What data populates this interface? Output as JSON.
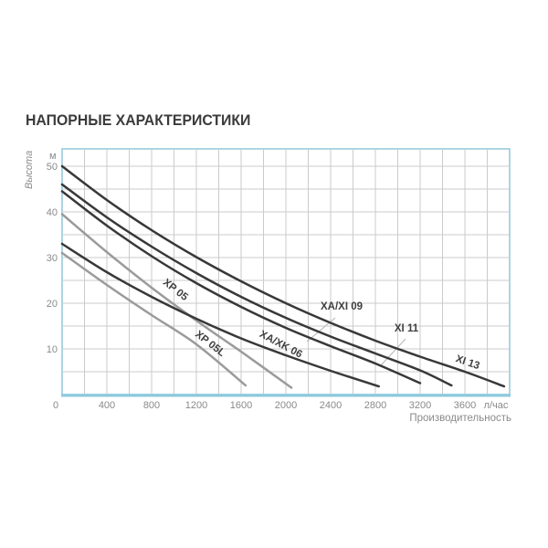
{
  "title": "НАПОРНЫЕ ХАРАКТЕРИСТИКИ",
  "chart_data": {
    "type": "line",
    "title": "НАПОРНЫЕ ХАРАКТЕРИСТИКИ",
    "xlabel": "Производительность",
    "x_unit": "л/час",
    "ylabel": "Высота",
    "y_unit": "м",
    "xlim": [
      0,
      4000
    ],
    "ylim": [
      0,
      53.8
    ],
    "x_ticks": [
      0,
      400,
      800,
      1200,
      1600,
      2000,
      2400,
      2800,
      3200,
      3600
    ],
    "y_ticks": [
      10,
      20,
      30,
      40,
      50
    ],
    "grid": {
      "x_step": 200,
      "y_step": 5,
      "on": true
    },
    "legend_position": "labels-on-curves",
    "colors": {
      "grid": "#cbcbcb",
      "frame": "#abd5e3",
      "frame_bottom": "#8ec9de",
      "axis_text": "#8a8a8a",
      "curve_dark": "#383838",
      "curve_gray": "#9b9b9b",
      "label_text": "#3f3f3f",
      "leader": "#b3b3b3",
      "title_text": "#3b3b3b"
    },
    "series": [
      {
        "name": "XP 05L",
        "color": "#9b9b9b",
        "points": [
          [
            0,
            31
          ],
          [
            400,
            24
          ],
          [
            800,
            17.4
          ],
          [
            1200,
            11
          ],
          [
            1640,
            2
          ]
        ],
        "label": {
          "x": 228,
          "y": 379,
          "rot": 38
        }
      },
      {
        "name": "XP 05",
        "color": "#9b9b9b",
        "points": [
          [
            0,
            39.5
          ],
          [
            400,
            31.2
          ],
          [
            800,
            23.4
          ],
          [
            1200,
            16.2
          ],
          [
            1600,
            9.4
          ],
          [
            2050,
            1.5
          ]
        ],
        "label": {
          "x": 190,
          "y": 320,
          "rot": 38
        }
      },
      {
        "name": "XA/XK 06",
        "color": "#383838",
        "points": [
          [
            0,
            33
          ],
          [
            400,
            26.8
          ],
          [
            800,
            21.4
          ],
          [
            1200,
            16.6
          ],
          [
            1600,
            12.3
          ],
          [
            2000,
            8.6
          ],
          [
            2400,
            5.2
          ],
          [
            2830,
            1.8
          ]
        ],
        "label": {
          "x": 306,
          "y": 380,
          "rot": 28
        }
      },
      {
        "name": "XA/XI 09",
        "color": "#383838",
        "points": [
          [
            0,
            44.5
          ],
          [
            400,
            37
          ],
          [
            800,
            30.3
          ],
          [
            1200,
            24.4
          ],
          [
            1600,
            19.2
          ],
          [
            2000,
            14.6
          ],
          [
            2400,
            10.6
          ],
          [
            2800,
            6.8
          ],
          [
            3200,
            2.5
          ]
        ],
        "label": {
          "x": 374,
          "y": 339,
          "rot": 0
        },
        "leader": [
          [
            367,
            348
          ],
          [
            336,
            374
          ]
        ]
      },
      {
        "name": "XI 11",
        "color": "#383838",
        "points": [
          [
            0,
            46
          ],
          [
            400,
            38.8
          ],
          [
            800,
            32.4
          ],
          [
            1200,
            26.6
          ],
          [
            1600,
            21.4
          ],
          [
            2000,
            16.8
          ],
          [
            2400,
            12.7
          ],
          [
            2800,
            9
          ],
          [
            3200,
            5.3
          ],
          [
            3480,
            2
          ]
        ],
        "label": {
          "x": 445,
          "y": 363,
          "rot": 0
        },
        "leader": [
          [
            444,
            371
          ],
          [
            417,
            400
          ]
        ]
      },
      {
        "name": "XI 13",
        "color": "#383838",
        "points": [
          [
            0,
            50
          ],
          [
            400,
            42.6
          ],
          [
            800,
            36
          ],
          [
            1200,
            30.1
          ],
          [
            1600,
            24.8
          ],
          [
            2000,
            20
          ],
          [
            2400,
            15.7
          ],
          [
            2800,
            11.8
          ],
          [
            3200,
            8.3
          ],
          [
            3600,
            5
          ],
          [
            3950,
            1.8
          ]
        ],
        "label": {
          "x": 511,
          "y": 400,
          "rot": 19
        }
      }
    ]
  }
}
